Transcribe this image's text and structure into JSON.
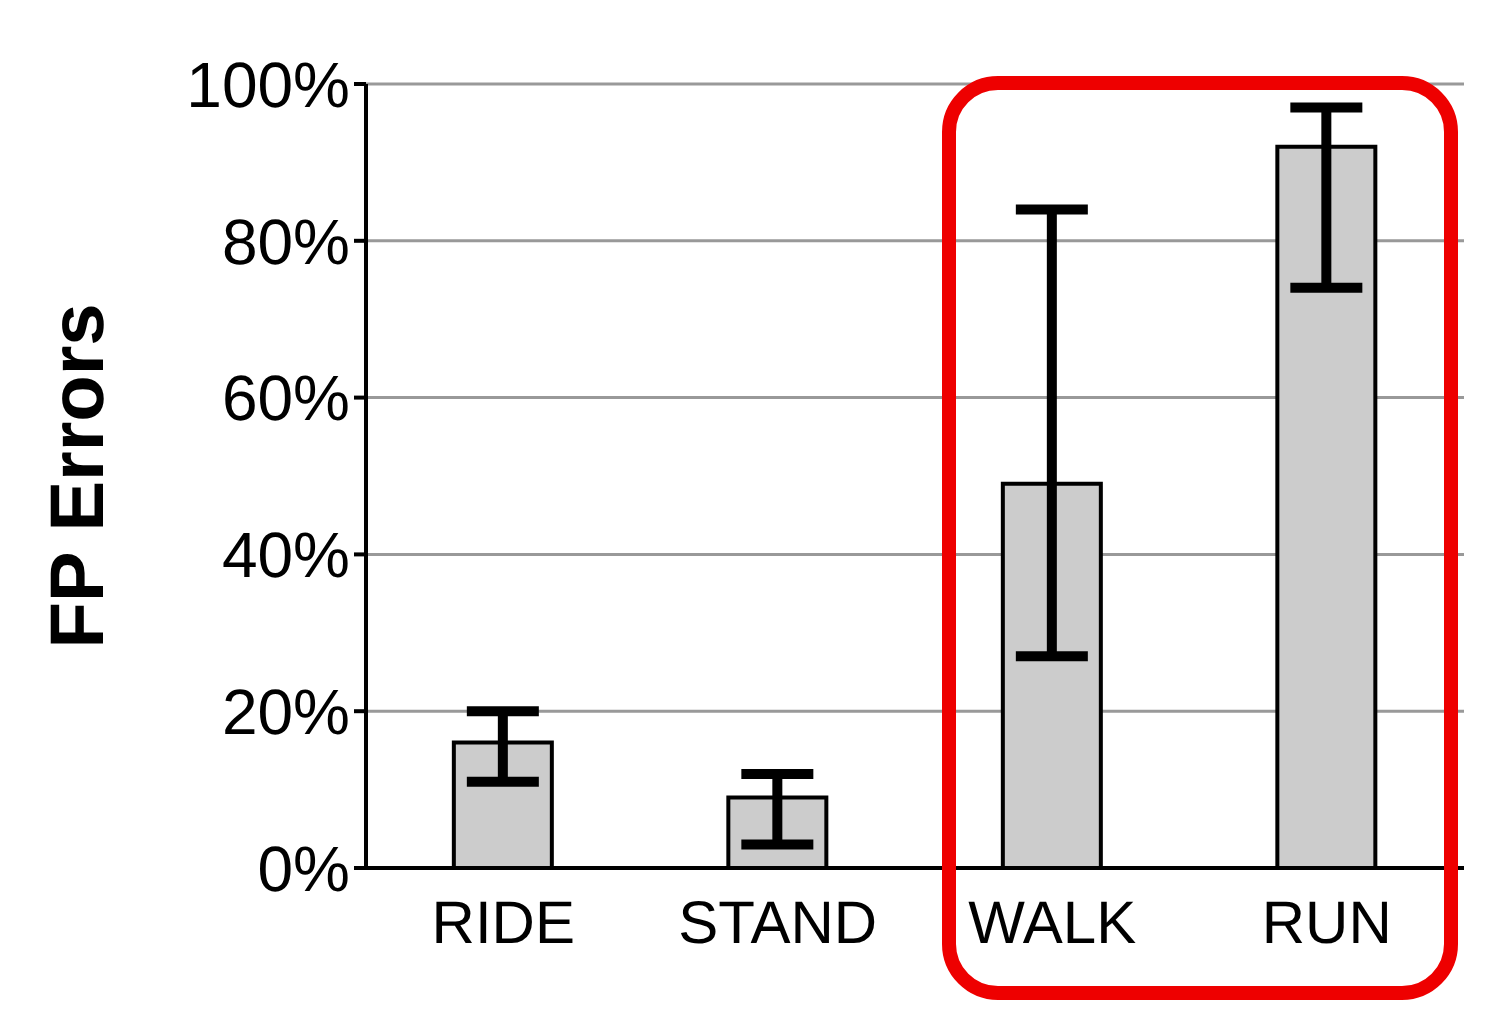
{
  "chart_data": {
    "type": "bar",
    "ylabel": "FP Errors",
    "categories": [
      "RIDE",
      "STAND",
      "WALK",
      "RUN"
    ],
    "values": [
      16,
      9,
      49,
      92
    ],
    "color": "#cccccc",
    "errors": [
      [
        11,
        20
      ],
      [
        3,
        12
      ],
      [
        27,
        84
      ],
      [
        74,
        97
      ]
    ],
    "ylim": [
      0,
      100
    ],
    "yticks": [
      {
        "value": 0,
        "label": "0%"
      },
      {
        "value": 20,
        "label": "20%"
      },
      {
        "value": 40,
        "label": "40%"
      },
      {
        "value": 60,
        "label": "60%"
      },
      {
        "value": 80,
        "label": "80%"
      },
      {
        "value": 100,
        "label": "100%"
      }
    ],
    "grid": "y"
  }
}
